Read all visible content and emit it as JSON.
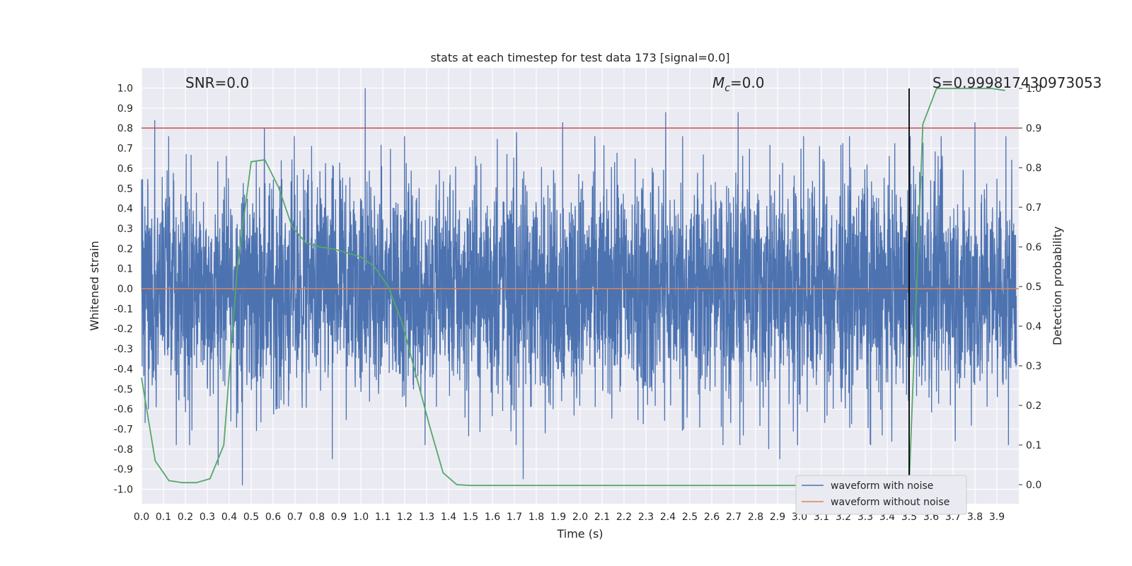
{
  "chart_data": {
    "type": "line",
    "title": "stats at each timestep for test data 173 [signal=0.0]",
    "xlabel": "Time (s)",
    "ylabel": "Whitened strain",
    "y2label": "Detection probability",
    "xlim": [
      0.0,
      4.0
    ],
    "ylim": [
      -1.1,
      1.1
    ],
    "y2lim": [
      -0.05,
      1.05
    ],
    "x_ticks": [
      "0.0",
      "0.1",
      "0.2",
      "0.3",
      "0.4",
      "0.5",
      "0.6",
      "0.7",
      "0.8",
      "0.9",
      "1.0",
      "1.1",
      "1.2",
      "1.3",
      "1.4",
      "1.5",
      "1.6",
      "1.7",
      "1.8",
      "1.9",
      "2.0",
      "2.1",
      "2.2",
      "2.3",
      "2.4",
      "2.5",
      "2.6",
      "2.7",
      "2.8",
      "2.9",
      "3.0",
      "3.1",
      "3.2",
      "3.3",
      "3.4",
      "3.5",
      "3.6",
      "3.7",
      "3.8",
      "3.9"
    ],
    "y_ticks": [
      "1.0",
      "0.9",
      "0.8",
      "0.7",
      "0.6",
      "0.5",
      "0.4",
      "0.3",
      "0.2",
      "0.1",
      "0.0",
      "-0.1",
      "-0.2",
      "-0.3",
      "-0.4",
      "-0.5",
      "-0.6",
      "-0.7",
      "-0.8",
      "-0.9",
      "-1.0"
    ],
    "y2_ticks": [
      "1.0",
      "0.9",
      "0.8",
      "0.7",
      "0.6",
      "0.5",
      "0.4",
      "0.3",
      "0.2",
      "0.1",
      "0.0"
    ],
    "annotations": {
      "snr": "SNR=0.0",
      "mc_symbol": "M",
      "mc_sub": "c",
      "mc_value": "=0.0",
      "s": "S=0.999817430973053"
    },
    "threshold": {
      "axis": "y2",
      "value": 0.9,
      "color": "#c44e52"
    },
    "vline": {
      "x": 3.5,
      "y2_from": 0.0,
      "y2_to": 1.0,
      "color": "#000000"
    },
    "series": [
      {
        "name": "waveform with noise",
        "color": "#4c72b0",
        "axis": "y",
        "kind": "noise",
        "seed": 173,
        "points": 4096,
        "spikes": [
          {
            "x": 0.06,
            "y": 0.84
          },
          {
            "x": 0.56,
            "y": 0.8
          },
          {
            "x": 1.02,
            "y": 1.0
          },
          {
            "x": 1.71,
            "y": 0.78
          },
          {
            "x": 1.92,
            "y": 0.83
          },
          {
            "x": 2.39,
            "y": 0.88
          },
          {
            "x": 2.72,
            "y": 0.88
          },
          {
            "x": 3.8,
            "y": 0.83
          },
          {
            "x": 0.46,
            "y": -0.98
          },
          {
            "x": 1.74,
            "y": -0.95
          },
          {
            "x": 0.87,
            "y": -0.85
          },
          {
            "x": 2.91,
            "y": -0.85
          },
          {
            "x": 2.86,
            "y": -0.8
          },
          {
            "x": 0.35,
            "y": -0.88
          },
          {
            "x": 3.71,
            "y": -0.76
          }
        ]
      },
      {
        "name": "waveform without noise",
        "color": "#dd8452",
        "axis": "y",
        "x": [
          0.0,
          4.0
        ],
        "y": [
          0.0,
          0.0
        ]
      },
      {
        "name": "detection probability",
        "color": "#55a868",
        "axis": "y2",
        "x": [
          0.0,
          0.0625,
          0.125,
          0.1875,
          0.25,
          0.3125,
          0.375,
          0.4375,
          0.5,
          0.5625,
          0.625,
          0.6875,
          0.75,
          0.8125,
          0.875,
          0.9375,
          1.0,
          1.0625,
          1.125,
          1.1875,
          1.25,
          1.3125,
          1.375,
          1.4375,
          1.5,
          1.5625,
          3.4375,
          3.5,
          3.5625,
          3.625,
          3.6875,
          3.75,
          3.8125,
          3.875,
          3.9375
        ],
        "y": [
          0.27,
          0.06,
          0.01,
          0.005,
          0.005,
          0.015,
          0.1,
          0.55,
          0.815,
          0.82,
          0.75,
          0.65,
          0.61,
          0.6,
          0.595,
          0.585,
          0.575,
          0.55,
          0.5,
          0.41,
          0.28,
          0.15,
          0.03,
          0.0,
          -0.002,
          -0.002,
          -0.002,
          -0.002,
          0.91,
          1.0,
          1.0,
          1.0,
          1.0,
          1.0,
          0.995
        ]
      }
    ],
    "legend": {
      "position": "lower-right",
      "entries": [
        {
          "label": "waveform with noise",
          "color": "#4c72b0"
        },
        {
          "label": "waveform without noise",
          "color": "#dd8452"
        }
      ]
    }
  }
}
